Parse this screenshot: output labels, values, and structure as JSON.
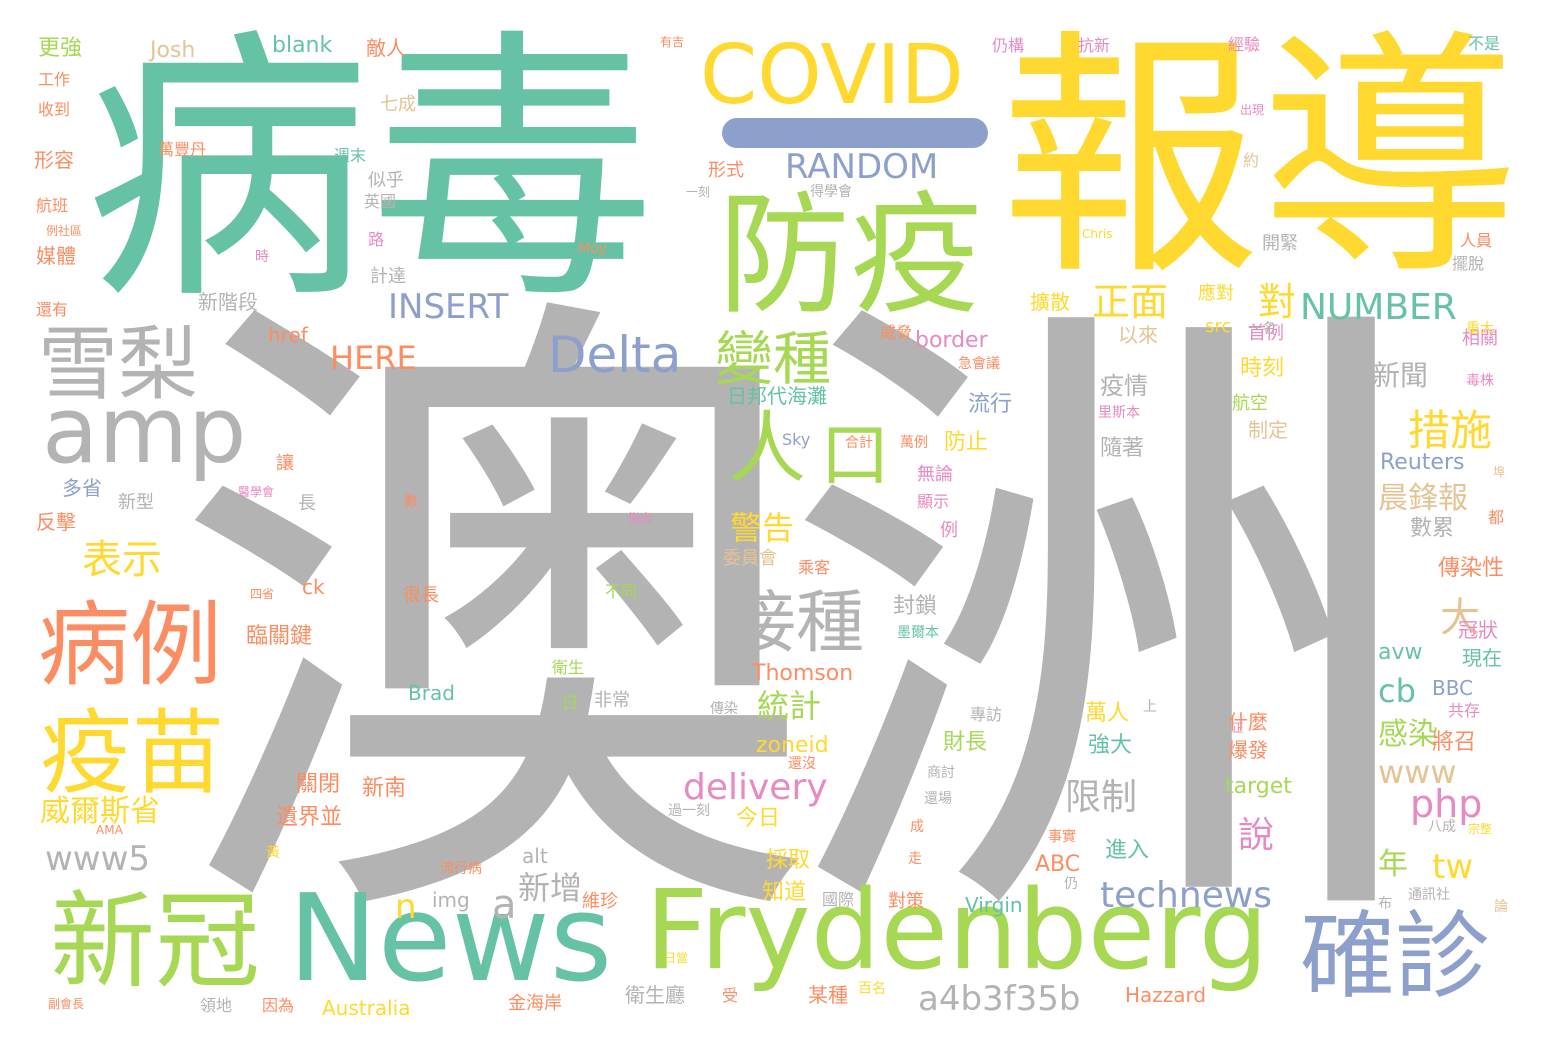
{
  "palette": {
    "teal": "#66c2a5",
    "orange": "#fc8d62",
    "blue": "#8da0cb",
    "pink": "#e78ac3",
    "green": "#a6d854",
    "yellow": "#ffd92f",
    "tan": "#e5c494",
    "gray": "#b3b3b3"
  },
  "words": [
    "澳洲",
    "病毒",
    "報導",
    "防疫",
    "COVID",
    "雪梨",
    "amp",
    "病例",
    "疫苗",
    "新冠",
    "News",
    "Frydenberg",
    "確診",
    "Delta",
    "變種",
    "接種",
    "人",
    "口",
    "正面",
    "對",
    "措施",
    "NUMBER",
    "INSERT",
    "HERE",
    "RANDOM",
    "表示",
    "大",
    "晨鋒報",
    "統計",
    "警告",
    "限制",
    "delivery",
    "php",
    "www",
    "www5",
    "technews",
    "a4b3f35b",
    "新增",
    "n",
    "a",
    "cb",
    "感染",
    "tw",
    "年",
    "說",
    "新聞",
    "疫情",
    "流行",
    "隨著",
    "防止",
    "Reuters",
    "數累",
    "傳染性",
    "冠狀",
    "avw",
    "BBC",
    "現在",
    "共存",
    "將召",
    "強大",
    "萬人",
    "財長",
    "今日",
    "zoneid",
    "Thomson",
    "封鎖",
    "臨關鍵",
    "關閉",
    "新南",
    "威爾斯省",
    "遺界並",
    "img",
    "alt",
    "ABC",
    "Virgin",
    "Australia",
    "Hazzard",
    "知道",
    "採取",
    "進入",
    "target",
    "爆發",
    "什麼",
    "某種",
    "衛生廳",
    "金海岸",
    "維珍",
    "國際",
    "對策",
    "首例",
    "相關",
    "航空",
    "時刻",
    "擴散",
    "以來",
    "制定",
    "應對",
    "開緊",
    "一名",
    "更強",
    "Josh",
    "blank",
    "敵人",
    "七成",
    "工作",
    "收到",
    "形容",
    "航班",
    "媒體",
    "還有",
    "多省",
    "反擊",
    "新型",
    "長",
    "讓",
    "計達",
    "新階段",
    "似乎",
    "英國",
    "路",
    "週末",
    "萬豐丹",
    "形式",
    "得學會",
    "src",
    "border",
    "href",
    "日邦代海灘",
    "委員會",
    "乘客",
    "無論",
    "顯示",
    "例",
    "不同",
    "很長",
    "衛生",
    "日",
    "非常",
    "ck",
    "Brad",
    "傳染",
    "Sky",
    "合計",
    "萬例",
    "人員",
    "擺脫",
    "重大",
    "毒株",
    "急會議",
    "里斯本",
    "不是",
    "經驗",
    "仍構",
    "抗新",
    "出現",
    "約",
    "Chris",
    "Moy",
    "時",
    "過一刻",
    "八成",
    "宗整",
    "論",
    "布",
    "通訊社",
    "仍",
    "事實",
    "黃",
    "AMA",
    "副會長",
    "領地",
    "因為",
    "受",
    "百名",
    "日當",
    "流行病",
    "事件",
    "墨爾本",
    "還沒",
    "商討",
    "還場",
    "成",
    "走",
    "專訪",
    "上",
    "正",
    "指出",
    "數",
    "四省",
    "醫學會",
    "威脅",
    "一刻",
    "都",
    "埠",
    "例社區",
    "有吉"
  ]
}
